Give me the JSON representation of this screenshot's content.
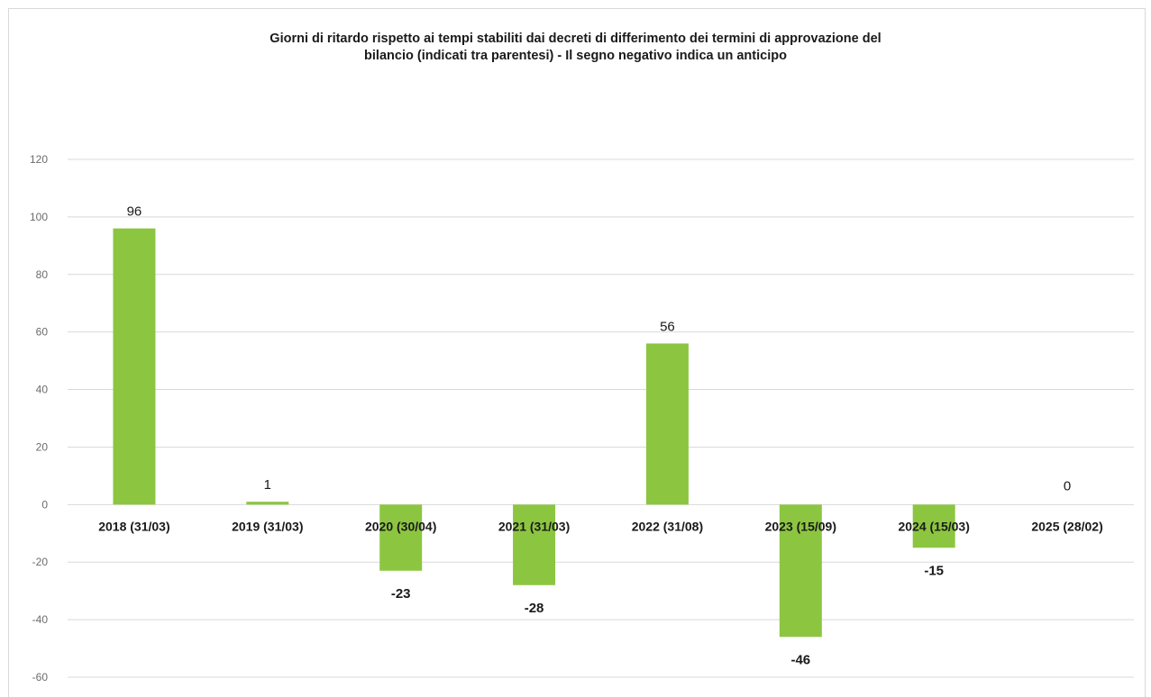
{
  "chart_data": {
    "type": "bar",
    "title_line1": "Giorni di ritardo rispetto ai tempi stabiliti dai decreti di differimento dei termini di  approvazione del",
    "title_line2": "bilancio (indicati tra parentesi) - Il segno negativo indica un anticipo",
    "categories": [
      "2018 (31/03)",
      "2019 (31/03)",
      "2020 (30/04)",
      "2021 (31/03)",
      "2022 (31/08)",
      "2023 (15/09)",
      "2024 (15/03)",
      "2025 (28/02)"
    ],
    "values": [
      96,
      1,
      -23,
      -28,
      56,
      -46,
      -15,
      0
    ],
    "data_labels": [
      "96",
      "1",
      "-23",
      "-28",
      "56",
      "-46",
      "-15",
      "0"
    ],
    "ylim": [
      -60,
      120
    ],
    "yticks": [
      120,
      100,
      80,
      60,
      40,
      20,
      0,
      -20,
      -40,
      -60
    ],
    "ytick_labels": [
      "120",
      "100",
      "80",
      "60",
      "40",
      "20",
      "0",
      "-20",
      "-40",
      "-60"
    ],
    "xlabel": "",
    "ylabel": "",
    "grid": true,
    "legend": "none",
    "bar_color": "#8cc641",
    "grid_color": "#d9d9d9"
  }
}
